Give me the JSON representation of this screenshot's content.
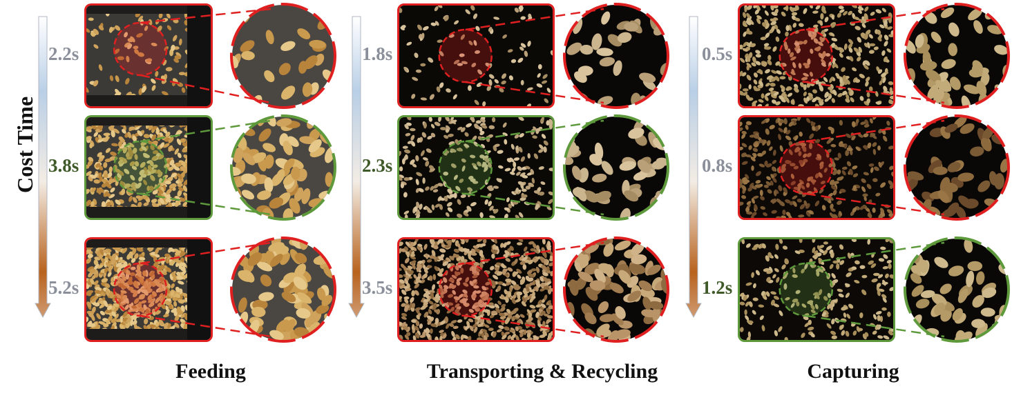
{
  "y_axis_label": "Cost Time",
  "stages": [
    {
      "caption": "Feeding",
      "rows": [
        {
          "time": "2.2s",
          "status": "bad"
        },
        {
          "time": "3.8s",
          "status": "good"
        },
        {
          "time": "5.2s",
          "status": "bad"
        }
      ]
    },
    {
      "caption": "Transporting & Recycling",
      "rows": [
        {
          "time": "1.8s",
          "status": "bad"
        },
        {
          "time": "2.3s",
          "status": "good"
        },
        {
          "time": "3.5s",
          "status": "bad"
        }
      ]
    },
    {
      "caption": "Capturing",
      "rows": [
        {
          "time": "0.5s",
          "status": "bad"
        },
        {
          "time": "0.8s",
          "status": "bad"
        },
        {
          "time": "1.2s",
          "status": "good"
        }
      ]
    }
  ],
  "colors": {
    "bad": "#e02020",
    "good": "#5e9a3c",
    "bad_text": "#8a8f99",
    "good_text": "#3f5a28",
    "arrow_top": "#b9cfe6",
    "arrow_bottom": "#b8631e"
  }
}
